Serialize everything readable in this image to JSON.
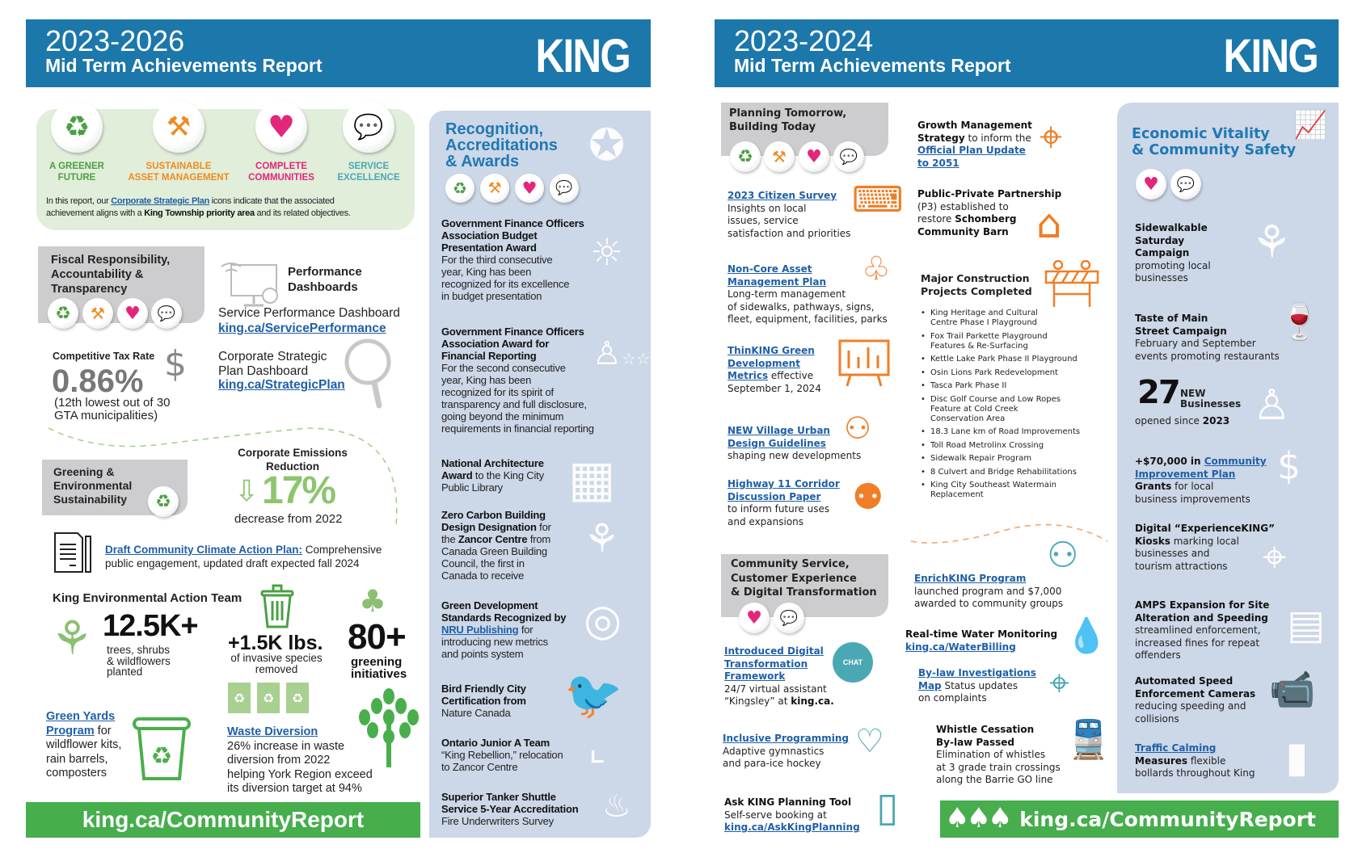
{
  "left": {
    "header": {
      "years": "2023-2026",
      "subtitle": "Mid Term Achievements Report",
      "logo": "KING"
    },
    "priorities": [
      {
        "label": "A GREENER\nFUTURE",
        "icon": "recycle-leaves-icon",
        "color": "#4aa043"
      },
      {
        "label": "SUSTAINABLE\nASSET MANAGEMENT",
        "icon": "worker-shovel-icon",
        "color": "#f08a1f"
      },
      {
        "label": "COMPLETE\nCOMMUNITIES",
        "icon": "heart-hands-icon",
        "color": "#e3267a"
      },
      {
        "label": "SERVICE\nEXCELLENCE",
        "icon": "speech-bubbles-icon",
        "color": "#4aa8b4"
      }
    ],
    "note": [
      [
        "",
        "In this report, our "
      ],
      [
        "a",
        "Corporate Strategic Plan"
      ],
      [
        "",
        " icons indicate that the associated\nachievement aligns with a "
      ],
      [
        "b",
        "King Township priority area"
      ],
      [
        "",
        " and its related objectives."
      ]
    ],
    "fiscal": {
      "title": "Fiscal Responsibility,\nAccountability &\nTransparency",
      "perf_title": "Performance\nDashboards",
      "service_dash": "Service Performance Dashboard",
      "service_link": "king.ca/ServicePerformance",
      "tax_label": "Competitive Tax Rate",
      "tax_value": "0.86%",
      "tax_note": "(12th lowest out of 30\nGTA municipalities)",
      "csp_dash": "Corporate Strategic\nPlan Dashboard",
      "csp_link": "king.ca/StrategicPlan"
    },
    "greening": {
      "title": "Greening &\nEnvironmental\nSustainability",
      "emissions_title": "Corporate Emissions\nReduction",
      "emissions_value": "17%",
      "emissions_note": "decrease from 2022",
      "climate_plan": [
        [
          "a",
          "Draft Community Climate Action Plan:"
        ],
        [
          "",
          " Comprehensive\npublic engagement, updated draft expected fall 2024"
        ]
      ],
      "keat_title": "King Environmental Action Team",
      "trees_value": "12.5K+",
      "trees_note": "trees, shrubs\n& wildflowers\nplanted",
      "invasive_value": "+1.5K lbs.",
      "invasive_note": "of invasive species\nremoved",
      "initiatives_value": "80+",
      "initiatives_note": "greening\ninitiatives",
      "green_yards": [
        [
          "a",
          "Green Yards\nProgram"
        ],
        [
          "",
          " for\nwildflower kits,\nrain barrels,\ncomposters"
        ]
      ],
      "waste": [
        [
          "a",
          "Waste Diversion"
        ],
        [
          "",
          "\n26% increase in waste\ndiversion from 2022\nhelping York Region exceed\nits diversion target at 94%"
        ]
      ]
    },
    "recognition": {
      "title": "Recognition,\nAccreditations\n& Awards",
      "items": [
        [
          [
            "b",
            "Government Finance Officers\nAssociation Budget\nPresentation Award"
          ],
          [
            "",
            "\nFor the third consecutive\nyear, King has been\nrecognized for its excellence\nin budget presentation"
          ]
        ],
        [
          [
            "b",
            "Government Finance Officers\nAssociation Award for\nFinancial Reporting"
          ],
          [
            "",
            "\nFor the second consecutive\nyear, King has been\nrecognized for its spirit of\ntransparency and full disclosure,\ngoing beyond the minimum\nrequirements in financial reporting"
          ]
        ],
        [
          [
            "b",
            "National Architecture\nAward"
          ],
          [
            "",
            " to the King City\nPublic Library"
          ]
        ],
        [
          [
            "b",
            "Zero Carbon Building\nDesign Designation"
          ],
          [
            "",
            " for\nthe "
          ],
          [
            "b",
            "Zancor Centre"
          ],
          [
            "",
            " from\nCanada Green Building\nCouncil, the first in\nCanada to receive"
          ]
        ],
        [
          [
            "b",
            "Green Development\nStandards Recognized by\n"
          ],
          [
            "a",
            "NRU Publishing"
          ],
          [
            "",
            " for\nintroducing new metrics\nand points system"
          ]
        ],
        [
          [
            "b",
            "Bird Friendly City\nCertification from"
          ],
          [
            "",
            "\nNature Canada"
          ]
        ],
        [
          [
            "b",
            "Ontario Junior A Team"
          ],
          [
            "",
            "\n“King Rebellion,” relocation\nto Zancor Centre"
          ]
        ],
        [
          [
            "b",
            "Superior Tanker Shuttle\nService 5-Year Accreditation"
          ],
          [
            "",
            "\nFire Underwriters Survey"
          ]
        ]
      ]
    },
    "footer": "king.ca/CommunityReport"
  },
  "right": {
    "header": {
      "years": "2023-2024",
      "subtitle": "Mid Term Achievements Report",
      "logo": "KING"
    },
    "planning": {
      "title": "Planning Tomorrow,\nBuilding Today",
      "items": [
        [
          [
            "a",
            "2023 Citizen Survey"
          ],
          [
            "",
            "\nInsights on local\nissues, service\nsatisfaction and priorities"
          ]
        ],
        [
          [
            "a",
            "Non-Core Asset\nManagement Plan"
          ],
          [
            "",
            "\nLong-term management\nof sidewalks, pathways, signs,\nfleet, equipment, facilities, parks"
          ]
        ],
        [
          [
            "a",
            "ThinKING Green\nDevelopment\nMetrics"
          ],
          [
            "",
            " effective\nSeptember 1, 2024"
          ]
        ],
        [
          [
            "a",
            "NEW Village Urban\nDesign Guidelines"
          ],
          [
            "",
            "\nshaping new developments"
          ]
        ],
        [
          [
            "a",
            "Highway 11 Corridor\nDiscussion Paper"
          ],
          [
            "",
            "\nto inform future uses\nand expansions"
          ]
        ]
      ],
      "growth": [
        [
          "b",
          "Growth Management\nStrategy"
        ],
        [
          "",
          " to inform the\n"
        ],
        [
          "a",
          "Official Plan Update\nto 2051"
        ]
      ],
      "p3": [
        [
          "b",
          "Public-Private Partnership"
        ],
        [
          "",
          "\n(P3) established to\nrestore "
        ],
        [
          "b",
          "Schomberg\nCommunity Barn"
        ]
      ],
      "construction_title": "Major Construction\nProjects Completed",
      "construction": [
        "King Heritage and Cultural\nCentre Phase I Playground",
        "Fox Trail Parkette Playground\nFeatures & Re-Surfacing",
        "Kettle Lake Park Phase II Playground",
        "Osin Lions Park Redevelopment",
        "Tasca Park Phase II",
        "Disc Golf Course and Low Ropes\nFeature at Cold Creek\nConservation Area",
        "18.3 Lane km of Road Improvements",
        "Toll Road Metrolinx Crossing",
        "Sidewalk Repair Program",
        "8 Culvert and Bridge Rehabilitations",
        "King City Southeast Watermain\nReplacement"
      ]
    },
    "community": {
      "title": "Community Service,\nCustomer Experience\n& Digital Transformation",
      "digital": [
        [
          "a",
          "Introduced Digital\nTransformation\nFramework"
        ],
        [
          "",
          "\n24/7 virtual assistant\n“Kingsley” at "
        ],
        [
          "b",
          "king.ca."
        ]
      ],
      "chat_badge": "CHAT",
      "inclusive": [
        [
          "a",
          "Inclusive Programming"
        ],
        [
          "",
          "\nAdaptive gymnastics\nand para-ice hockey"
        ]
      ],
      "ask": [
        [
          "b",
          "Ask KING Planning Tool"
        ],
        [
          "",
          "\nSelf-serve booking at\n"
        ],
        [
          "a",
          "king.ca/AskKingPlanning"
        ]
      ],
      "enrich": [
        [
          "a",
          "EnrichKING Program"
        ],
        [
          "",
          "\nlaunched program and $7,000\nawarded to community groups"
        ]
      ],
      "water": [
        [
          "b",
          "Real-time Water Monitoring"
        ],
        [
          "",
          "\n"
        ],
        [
          "a",
          "king.ca/WaterBilling"
        ]
      ],
      "bylaw": [
        [
          "a",
          "By-law Investigations\nMap"
        ],
        [
          "",
          " Status updates\non complaints"
        ]
      ],
      "whistle": [
        [
          "b",
          "Whistle Cessation\nBy-law Passed"
        ],
        [
          "",
          "\nElimination of whistles\nat 3 grade train crossings\nalong the Barrie GO line"
        ]
      ]
    },
    "economic": {
      "title": "Economic Vitality\n& Community Safety",
      "items": [
        [
          [
            "b",
            "Sidewalkable\nSaturday\nCampaign"
          ],
          [
            "",
            "\npromoting local\nbusinesses"
          ]
        ],
        [
          [
            "b",
            "Taste of Main\nStreet Campaign"
          ],
          [
            "",
            "\nFebruary and September\nevents promoting restaurants"
          ]
        ],
        [
          [
            "b",
            "+$70,000 in "
          ],
          [
            "a",
            "Community\nImprovement Plan"
          ],
          [
            "b",
            "\nGrants"
          ],
          [
            "",
            " for local\nbusiness improvements"
          ]
        ],
        [
          [
            "b",
            "Digital “ExperienceKING”\nKiosks"
          ],
          [
            "",
            " marking local\nbusinesses and\ntourism attractions"
          ]
        ],
        [
          [
            "b",
            "AMPS Expansion for Site\nAlteration and Speeding"
          ],
          [
            "",
            "\nstreamlined enforcement,\nincreased fines for repeat\noffenders"
          ]
        ],
        [
          [
            "b",
            "Automated Speed\nEnforcement Cameras"
          ],
          [
            "",
            "\nreducing speeding and\ncollisions"
          ]
        ],
        [
          [
            "a",
            "Traffic Calming"
          ],
          [
            "b",
            "\nMeasures"
          ],
          [
            "",
            " flexible\nbollards throughout King"
          ]
        ]
      ],
      "new_biz_value": "27",
      "new_biz_label": "NEW\nBusinesses",
      "new_biz_note": [
        [
          "",
          "opened since "
        ],
        [
          "b",
          "2023"
        ]
      ]
    },
    "footer": "king.ca/CommunityReport"
  },
  "colors": {
    "header": "#1c77aa",
    "green": "#46ae4c",
    "panel": "#ccd7e7",
    "link": "#1f5fa8",
    "orange": "#f07e26",
    "teal": "#4aa8b4"
  }
}
